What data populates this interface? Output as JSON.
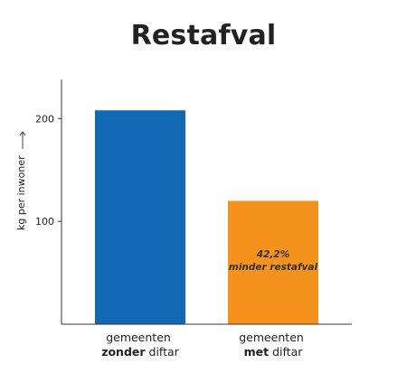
{
  "chart_data": {
    "type": "bar",
    "title": "Restafval",
    "ylabel": "kg per inwoner",
    "ylim": [
      0,
      238
    ],
    "yticks": [
      100,
      200
    ],
    "categories": [
      {
        "line1": "gemeenten",
        "bold": "zonder",
        "rest": " diftar"
      },
      {
        "line1": "gemeenten",
        "bold": "met",
        "rest": " diftar"
      }
    ],
    "values": [
      208,
      120
    ],
    "colors": [
      "#1268b3",
      "#f5921e"
    ],
    "annotation": {
      "line1": "42,2%",
      "line2": "minder restafval"
    }
  }
}
